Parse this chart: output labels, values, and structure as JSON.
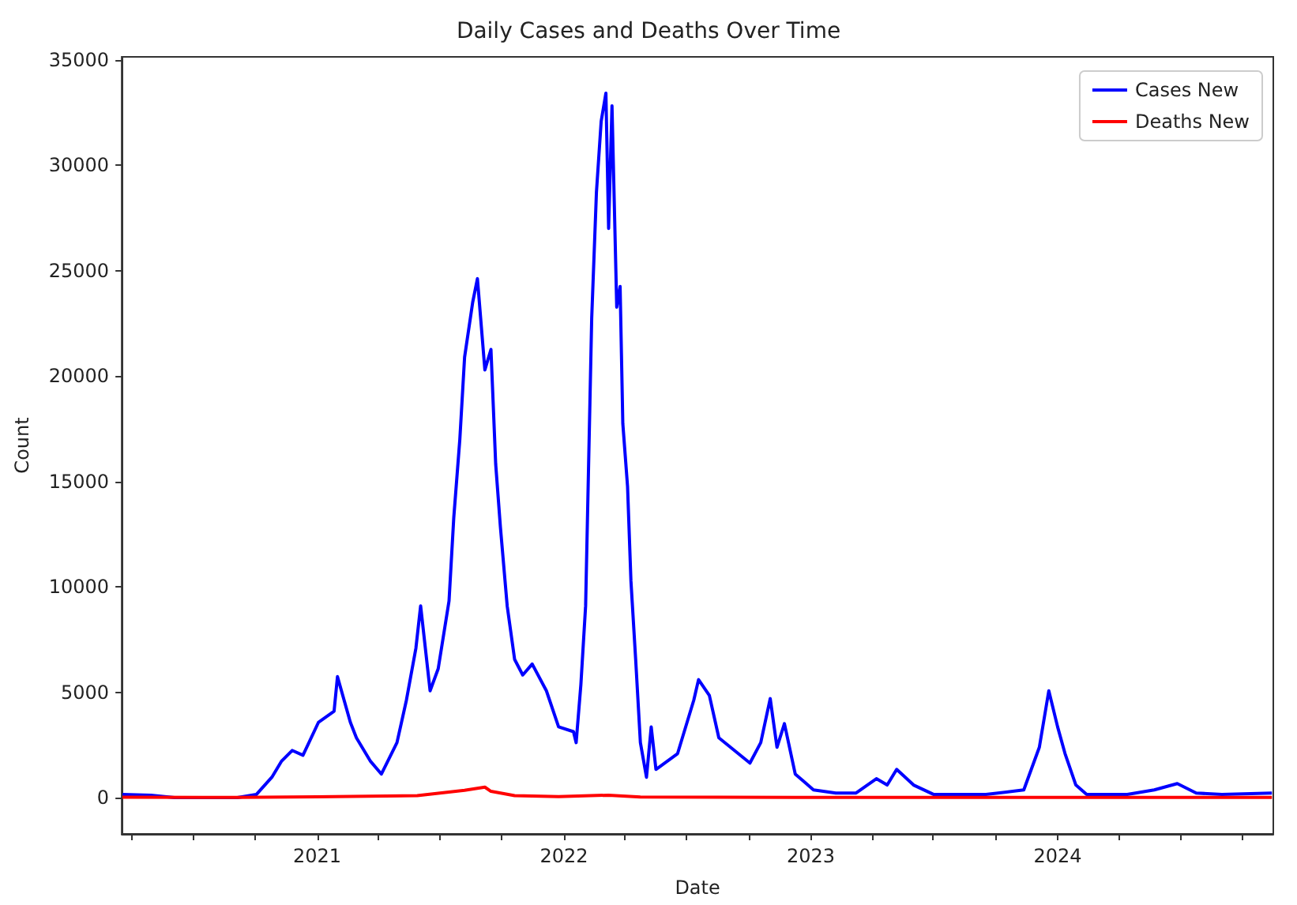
{
  "chart_data": {
    "type": "line",
    "title": "Daily Cases and Deaths Over Time",
    "xlabel": "Date",
    "ylabel": "Count",
    "xlim": [
      "2020-03-18",
      "2024-11-15"
    ],
    "xticks": [
      {
        "value": "2020-04",
        "label": null
      },
      {
        "value": "2020-07",
        "label": null
      },
      {
        "value": "2020-10",
        "label": null
      },
      {
        "value": "2021",
        "label": "2021"
      },
      {
        "value": "2021-04",
        "label": null
      },
      {
        "value": "2021-07",
        "label": null
      },
      {
        "value": "2021-10",
        "label": null
      },
      {
        "value": "2022",
        "label": "2022"
      },
      {
        "value": "2022-04",
        "label": null
      },
      {
        "value": "2022-07",
        "label": null
      },
      {
        "value": "2022-10",
        "label": null
      },
      {
        "value": "2023",
        "label": "2023"
      },
      {
        "value": "2023-04",
        "label": null
      },
      {
        "value": "2023-07",
        "label": null
      },
      {
        "value": "2023-10",
        "label": null
      },
      {
        "value": "2024",
        "label": "2024"
      },
      {
        "value": "2024-04",
        "label": null
      },
      {
        "value": "2024-07",
        "label": null
      },
      {
        "value": "2024-10",
        "label": null
      }
    ],
    "ylim": [
      -1720,
      35140
    ],
    "yticks": [
      0,
      5000,
      10000,
      15000,
      20000,
      25000,
      30000,
      35000
    ],
    "grid": false,
    "legend": "top right",
    "marker": "none",
    "line_style": "solid",
    "series": [
      {
        "name": "Cases New",
        "color": "#0000ff",
        "x": [
          "2020-03-19",
          "2020-04-30",
          "2020-06-04",
          "2020-09-05",
          "2020-10-03",
          "2020-10-26",
          "2020-11-09",
          "2020-11-25",
          "2020-12-11",
          "2021-01-03",
          "2021-01-26",
          "2021-01-31",
          "2021-02-19",
          "2021-02-28",
          "2021-03-21",
          "2021-04-06",
          "2021-04-29",
          "2021-05-13",
          "2021-05-27",
          "2021-06-03",
          "2021-06-17",
          "2021-06-29",
          "2021-07-15",
          "2021-07-22",
          "2021-07-31",
          "2021-08-07",
          "2021-08-19",
          "2021-08-26",
          "2021-09-06",
          "2021-09-15",
          "2021-09-22",
          "2021-09-29",
          "2021-10-09",
          "2021-10-20",
          "2021-11-01",
          "2021-11-15",
          "2021-12-06",
          "2021-12-24",
          "2022-01-15",
          "2022-01-19",
          "2022-01-26",
          "2022-02-02",
          "2022-02-11",
          "2022-02-18",
          "2022-02-25",
          "2022-03-04",
          "2022-03-08",
          "2022-03-13",
          "2022-03-20",
          "2022-03-25",
          "2022-03-29",
          "2022-04-05",
          "2022-04-10",
          "2022-04-17",
          "2022-04-24",
          "2022-05-03",
          "2022-05-10",
          "2022-05-17",
          "2022-06-18",
          "2022-07-12",
          "2022-07-19",
          "2022-08-04",
          "2022-08-18",
          "2022-10-03",
          "2022-10-19",
          "2022-11-02",
          "2022-11-12",
          "2022-11-23",
          "2022-12-09",
          "2023-01-05",
          "2023-02-07",
          "2023-03-09",
          "2023-04-08",
          "2023-04-24",
          "2023-05-08",
          "2023-06-02",
          "2023-07-02",
          "2023-09-17",
          "2023-11-12",
          "2023-12-05",
          "2023-12-19",
          "2024-01-01",
          "2024-01-12",
          "2024-01-28",
          "2024-02-13",
          "2024-04-13",
          "2024-05-23",
          "2024-06-26",
          "2024-07-24",
          "2024-08-31",
          "2024-11-13"
        ],
        "values": [
          150,
          120,
          0,
          0,
          150,
          970,
          1720,
          2240,
          2010,
          3580,
          4100,
          5740,
          3580,
          2840,
          1720,
          1120,
          2610,
          4630,
          7090,
          9100,
          5070,
          6120,
          9330,
          13280,
          17010,
          20890,
          23500,
          24620,
          20290,
          21260,
          15820,
          12830,
          9100,
          6560,
          5820,
          6340,
          5070,
          3360,
          3130,
          2610,
          5370,
          9100,
          22750,
          28720,
          32080,
          33420,
          27000,
          32820,
          23270,
          24250,
          17750,
          14770,
          10290,
          6560,
          2610,
          970,
          3360,
          1340,
          2090,
          4630,
          5600,
          4850,
          2840,
          1640,
          2610,
          4700,
          2390,
          3510,
          1120,
          370,
          220,
          220,
          900,
          600,
          1340,
          600,
          150,
          150,
          370,
          2390,
          5070,
          3360,
          2090,
          600,
          150,
          150,
          370,
          670,
          220,
          150,
          220
        ]
      },
      {
        "name": "Deaths New",
        "color": "#ff0000",
        "x": [
          "2020-03-19",
          "2020-09-05",
          "2021-01-01",
          "2021-05-29",
          "2021-08-07",
          "2021-09-06",
          "2021-09-15",
          "2021-10-20",
          "2021-12-24",
          "2022-03-08",
          "2022-04-24",
          "2022-12-09",
          "2024-11-13"
        ],
        "values": [
          20,
          10,
          40,
          100,
          350,
          500,
          300,
          100,
          50,
          120,
          30,
          10,
          10
        ]
      }
    ]
  }
}
